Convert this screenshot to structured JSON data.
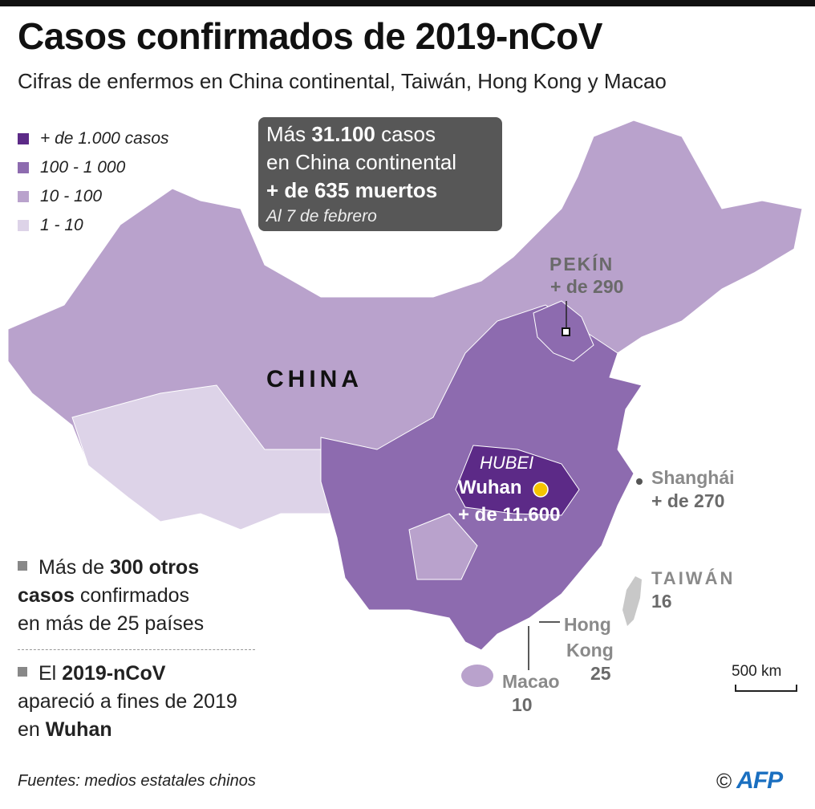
{
  "title": "Casos confirmados de 2019-nCoV",
  "subtitle": "Cifras de enfermos en China continental, Taiwán, Hong Kong y Macao",
  "colors": {
    "over_1000": "#5c2a87",
    "c100_1000": "#8d6baf",
    "c10_100": "#b9a2cc",
    "c1_10": "#ddd3e8",
    "taiwan": "#c8c8c8",
    "wuhan_dot": "#f5c400",
    "box_bg": "#575757"
  },
  "legend": [
    {
      "label": "+ de 1.000 casos",
      "color": "#5c2a87"
    },
    {
      "label": "100 - 1 000",
      "color": "#8d6baf"
    },
    {
      "label": "10 - 100",
      "color": "#b9a2cc"
    },
    {
      "label": "1 - 10",
      "color": "#ddd3e8"
    }
  ],
  "summary_box": {
    "line1_pre": "Más ",
    "line1_bold": "31.100",
    "line1_post": " casos",
    "line2": "en China continental",
    "line3": "+ de 635 muertos",
    "date": "Al 7 de febrero"
  },
  "labels": {
    "china": "CHINA",
    "pekin_name": "PEKÍN",
    "pekin_cases": "+ de 290",
    "hubei": "HUBEI",
    "wuhan": "Wuhan",
    "wuhan_cases": "+ de 11.600",
    "shanghai_name": "Shanghái",
    "shanghai_cases": "+ de 270",
    "taiwan_name": "TAIWÁN",
    "taiwan_cases": "16",
    "hongkong_name1": "Hong",
    "hongkong_name2": "Kong",
    "hongkong_cases": "25",
    "macao_name": "Macao",
    "macao_cases": "10"
  },
  "notes": {
    "n1_a": "Más de ",
    "n1_b": "300 otros",
    "n1_c": "casos",
    "n1_d": " confirmados",
    "n1_e": "en más de 25 países",
    "n2_a": "El ",
    "n2_b": "2019-nCoV",
    "n2_c": "apareció a fines de 2019",
    "n2_d": "en ",
    "n2_e": "Wuhan"
  },
  "scale": "500 km",
  "source": "Fuentes: medios estatales chinos",
  "credit": {
    "copyright": "©",
    "logo": "AFP"
  }
}
